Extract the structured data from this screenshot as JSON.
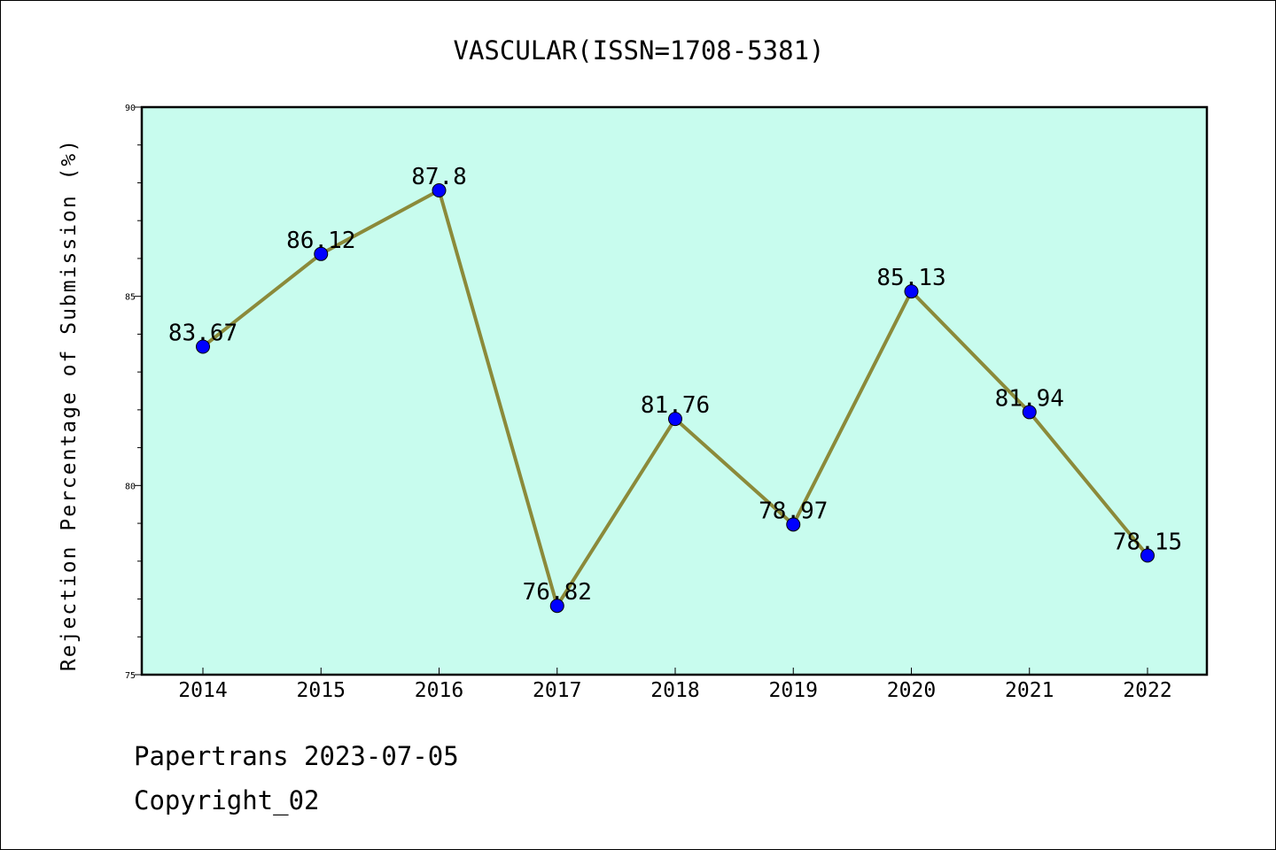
{
  "chart_data": {
    "type": "line",
    "title": "VASCULAR(ISSN=1708-5381)",
    "xlabel": "",
    "ylabel": "Rejection Percentage of Submission (%)",
    "categories": [
      "2014",
      "2015",
      "2016",
      "2017",
      "2018",
      "2019",
      "2020",
      "2021",
      "2022"
    ],
    "values": [
      83.67,
      86.12,
      87.8,
      76.82,
      81.76,
      78.97,
      85.13,
      81.94,
      78.15
    ],
    "data_labels": [
      "83.67",
      "86.12",
      "87.8",
      "76.82",
      "81.76",
      "78.97",
      "85.13",
      "81.94",
      "78.15"
    ],
    "ylim": [
      75,
      90
    ],
    "yticks": [
      "75",
      "80",
      "85",
      "90"
    ],
    "grid": false,
    "legend": "none",
    "colors": {
      "plot_background": "#c8fcee",
      "line": "#8b8a3a",
      "marker": "#0000ff",
      "axis": "#000000"
    }
  },
  "footer": {
    "line1": "Papertrans 2023-07-05",
    "line2": "Copyright_02"
  }
}
